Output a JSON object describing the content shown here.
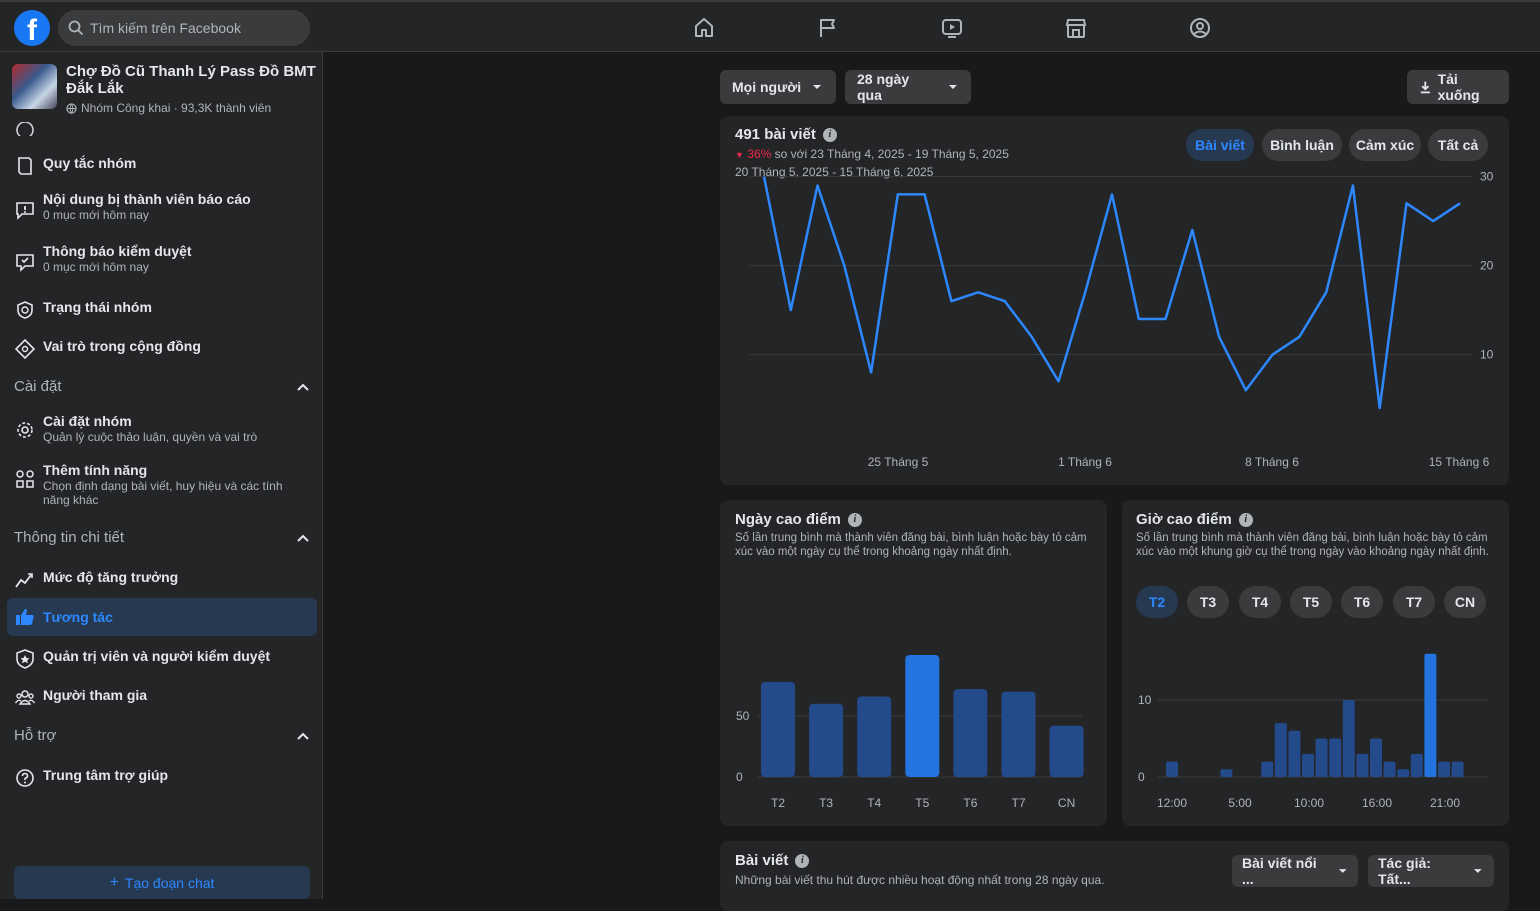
{
  "topbar": {
    "logo": "f",
    "search_placeholder": "Tìm kiếm trên Facebook",
    "nav_icons": [
      "home-icon",
      "flag-icon",
      "video-icon",
      "marketplace-icon",
      "gaming-icon"
    ]
  },
  "group": {
    "name": "Chợ Đồ Cũ Thanh Lý Pass Đồ BMT Đắk Lắk",
    "meta": "Nhóm Công khai · 93,3K thành viên"
  },
  "sidebar": {
    "items": [
      {
        "label": "Quy tắc nhóm",
        "sub": ""
      },
      {
        "label": "Nội dung bị thành viên báo cáo",
        "sub": "0 mục mới hôm nay"
      },
      {
        "label": "Thông báo kiểm duyệt",
        "sub": "0 mục mới hôm nay"
      },
      {
        "label": "Trạng thái nhóm",
        "sub": ""
      },
      {
        "label": "Vai trò trong cộng đồng",
        "sub": ""
      }
    ],
    "section_settings": "Cài đặt",
    "settings_items": [
      {
        "label": "Cài đặt nhóm",
        "sub": "Quản lý cuộc thảo luận, quyền và vai trò"
      },
      {
        "label": "Thêm tính năng",
        "sub": "Chọn định dạng bài viết, huy hiệu và các tính năng khác"
      }
    ],
    "section_insights": "Thông tin chi tiết",
    "insights_items": [
      {
        "label": "Mức độ tăng trưởng"
      },
      {
        "label": "Tương tác"
      },
      {
        "label": "Quản trị viên và người kiểm duyệt"
      },
      {
        "label": "Người tham gia"
      }
    ],
    "section_support": "Hỗ trợ",
    "support_items": [
      {
        "label": "Trung tâm trợ giúp"
      }
    ],
    "chat_button": "Tạo đoạn chat"
  },
  "filters": {
    "audience": "Mọi người",
    "range": "28 ngày qua",
    "download": "Tải xuống"
  },
  "posts_card": {
    "title": "491 bài viết",
    "change_pct": "36%",
    "change_text": "so với 23 Tháng 4, 2025 - 19 Tháng 5, 2025",
    "period": "20 Tháng 5, 2025 - 15 Tháng 6, 2025",
    "tabs": [
      "Bài viết",
      "Bình luận",
      "Cảm xúc",
      "Tất cả"
    ],
    "colors": {
      "line": "#2d88ff",
      "down": "#f02849"
    }
  },
  "peak_day": {
    "title": "Ngày cao điểm",
    "desc": "Số lần trung bình mà thành viên đăng bài, bình luận hoặc bày tỏ cảm xúc vào một ngày cụ thể trong khoảng ngày nhất định."
  },
  "peak_hour": {
    "title": "Giờ cao điểm",
    "desc": "Số lần trung bình mà thành viên đăng bài, bình luận hoặc bày tỏ cảm xúc vào một khung giờ cụ thể trong ngày vào khoảng ngày nhất định.",
    "days": [
      "T2",
      "T3",
      "T4",
      "T5",
      "T6",
      "T7",
      "CN"
    ]
  },
  "top_posts": {
    "title": "Bài viết",
    "desc": "Những bài viết thu hút được nhiều hoạt động nhất trong 28 ngày qua.",
    "sort": "Bài viết nổi ...",
    "author": "Tác giả: Tất..."
  },
  "chart_data": [
    {
      "type": "line",
      "x_labels": [
        "25 Tháng 5",
        "1 Tháng 6",
        "8 Tháng 6",
        "15 Tháng 6"
      ],
      "values": [
        30,
        15,
        29,
        20,
        8,
        28,
        28,
        16,
        17,
        16,
        12,
        7,
        17,
        28,
        14,
        14,
        24,
        12,
        6,
        10,
        12,
        17,
        29,
        4,
        27,
        25,
        27
      ],
      "yticks": [
        10,
        20,
        30
      ],
      "ylim": [
        4,
        30
      ]
    },
    {
      "type": "bar",
      "categories": [
        "T2",
        "T3",
        "T4",
        "T5",
        "T6",
        "T7",
        "CN"
      ],
      "values": [
        78,
        60,
        66,
        100,
        72,
        70,
        42
      ],
      "yticks": [
        0,
        50
      ],
      "highlight": 3
    },
    {
      "type": "bar",
      "x_labels": [
        "12:00",
        "5:00",
        "10:00",
        "16:00",
        "21:00"
      ],
      "values": [
        2,
        0,
        0,
        0,
        1,
        0,
        0,
        2,
        7,
        6,
        3,
        5,
        5,
        10,
        3,
        5,
        2,
        1,
        3,
        16,
        2,
        2
      ],
      "yticks": [
        0,
        10
      ],
      "highlight": 19
    }
  ]
}
